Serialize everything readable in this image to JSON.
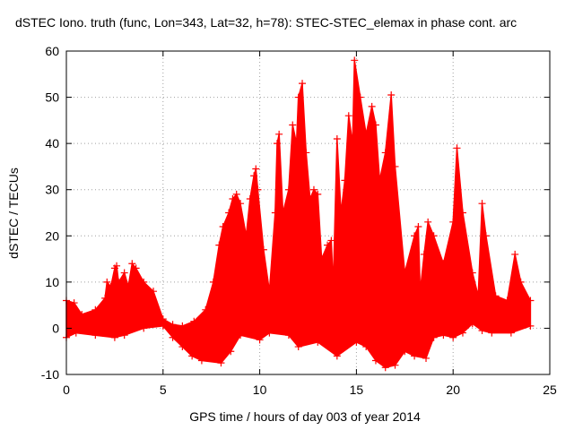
{
  "chart_data": {
    "type": "scatter",
    "title": "dSTEC Iono. truth (func, Lon=343, Lat=32, h=78): STEC-STEC_elemax in phase cont. arc",
    "xlabel": "GPS time / hours of day 003 of year 2014",
    "ylabel": "dSTEC  / TECUs",
    "xlim": [
      0,
      25
    ],
    "ylim": [
      -10,
      60
    ],
    "x_ticks": [
      0,
      5,
      10,
      15,
      20,
      25
    ],
    "y_ticks": [
      -10,
      0,
      10,
      20,
      30,
      40,
      50,
      60
    ],
    "grid": true,
    "marker": "plus",
    "series_color": "#ff0000",
    "upper_envelope": [
      [
        0.0,
        6
      ],
      [
        0.4,
        5.5
      ],
      [
        0.8,
        3
      ],
      [
        1.5,
        4
      ],
      [
        2.0,
        6.5
      ],
      [
        2.1,
        10
      ],
      [
        2.3,
        9
      ],
      [
        2.5,
        13
      ],
      [
        2.6,
        13.5
      ],
      [
        2.7,
        10
      ],
      [
        3.0,
        12
      ],
      [
        3.2,
        9
      ],
      [
        3.4,
        14
      ],
      [
        3.6,
        13
      ],
      [
        4.0,
        10
      ],
      [
        4.5,
        8
      ],
      [
        5.0,
        2
      ],
      [
        5.5,
        0.8
      ],
      [
        6.0,
        0.5
      ],
      [
        6.6,
        1.5
      ],
      [
        7.2,
        4
      ],
      [
        7.6,
        10
      ],
      [
        7.9,
        18
      ],
      [
        8.1,
        22
      ],
      [
        8.4,
        25
      ],
      [
        8.6,
        28
      ],
      [
        8.8,
        29
      ],
      [
        9.0,
        27
      ],
      [
        9.3,
        20
      ],
      [
        9.5,
        28
      ],
      [
        9.7,
        33
      ],
      [
        9.8,
        34.5
      ],
      [
        9.9,
        30
      ],
      [
        10.2,
        17
      ],
      [
        10.5,
        8
      ],
      [
        10.8,
        25
      ],
      [
        10.9,
        40
      ],
      [
        11.0,
        42
      ],
      [
        11.2,
        25
      ],
      [
        11.5,
        30
      ],
      [
        11.7,
        44
      ],
      [
        11.9,
        40
      ],
      [
        12.0,
        50
      ],
      [
        12.2,
        53
      ],
      [
        12.4,
        38
      ],
      [
        12.6,
        28
      ],
      [
        12.8,
        30
      ],
      [
        13.0,
        29
      ],
      [
        13.2,
        15
      ],
      [
        13.5,
        18
      ],
      [
        13.7,
        19
      ],
      [
        13.8,
        9
      ],
      [
        14.0,
        41
      ],
      [
        14.2,
        25
      ],
      [
        14.4,
        32
      ],
      [
        14.6,
        46
      ],
      [
        14.8,
        40
      ],
      [
        14.9,
        58
      ],
      [
        15.2,
        50
      ],
      [
        15.5,
        42
      ],
      [
        15.8,
        48
      ],
      [
        16.0,
        44
      ],
      [
        16.2,
        32
      ],
      [
        16.5,
        38
      ],
      [
        16.8,
        50.5
      ],
      [
        17.0,
        35
      ],
      [
        17.5,
        12
      ],
      [
        18.0,
        20
      ],
      [
        18.2,
        22
      ],
      [
        18.3,
        8
      ],
      [
        18.5,
        16
      ],
      [
        18.7,
        23
      ],
      [
        19.0,
        20
      ],
      [
        19.5,
        14
      ],
      [
        20.0,
        23
      ],
      [
        20.2,
        39
      ],
      [
        20.5,
        25
      ],
      [
        21.0,
        12
      ],
      [
        21.3,
        7
      ],
      [
        21.5,
        27
      ],
      [
        21.7,
        20
      ],
      [
        22.2,
        7
      ],
      [
        22.8,
        6
      ],
      [
        23.2,
        16
      ],
      [
        23.5,
        10
      ],
      [
        24.0,
        6
      ]
    ],
    "lower_envelope": [
      [
        0.0,
        -2
      ],
      [
        0.5,
        -1
      ],
      [
        1.5,
        -1.5
      ],
      [
        2.5,
        -2
      ],
      [
        3.0,
        -1.5
      ],
      [
        4.0,
        0
      ],
      [
        5.0,
        0.5
      ],
      [
        5.5,
        -2
      ],
      [
        6.0,
        -4
      ],
      [
        6.5,
        -6
      ],
      [
        7.0,
        -7
      ],
      [
        8.0,
        -7.5
      ],
      [
        8.5,
        -5
      ],
      [
        9.0,
        -1.5
      ],
      [
        10.0,
        -2.5
      ],
      [
        10.5,
        -1
      ],
      [
        11.5,
        -1.5
      ],
      [
        12.0,
        -4
      ],
      [
        13.0,
        -3
      ],
      [
        14.0,
        -6
      ],
      [
        15.0,
        -3
      ],
      [
        15.5,
        -4
      ],
      [
        16.0,
        -7
      ],
      [
        16.5,
        -8.5
      ],
      [
        17.0,
        -8
      ],
      [
        17.5,
        -5
      ],
      [
        18.0,
        -6
      ],
      [
        18.6,
        -6.5
      ],
      [
        19.0,
        -2
      ],
      [
        19.5,
        -1.5
      ],
      [
        20.0,
        -2
      ],
      [
        20.5,
        -1
      ],
      [
        21.0,
        1
      ],
      [
        21.5,
        -0.5
      ],
      [
        22.0,
        -1
      ],
      [
        23.0,
        -1
      ],
      [
        24.0,
        0.5
      ]
    ]
  }
}
